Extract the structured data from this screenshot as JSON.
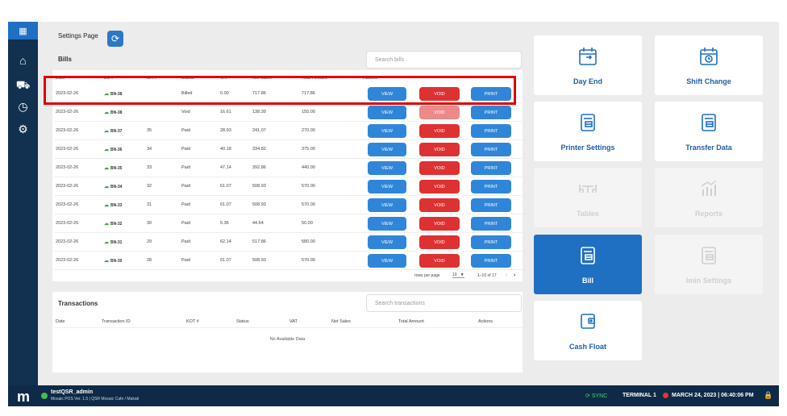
{
  "settings": {
    "page_title": "Settings Page"
  },
  "bills": {
    "title": "Bills",
    "search_placeholder": "Search bills",
    "columns": [
      "Date",
      "Bill #",
      "OR #",
      "Status",
      "VAT",
      "Net Sales",
      "Total Amount",
      "Actions"
    ],
    "sort_indicator": "▼",
    "rows": [
      {
        "date": "2023-02-26",
        "bill": "BN-38",
        "or": "",
        "status": "Billed",
        "vat": "0.00",
        "net": "717.86",
        "total": "717.86"
      },
      {
        "date": "2023-02-26",
        "bill": "BN-38",
        "or": "",
        "status": "Void",
        "vat": "16.61",
        "net": "138.39",
        "total": "155.00"
      },
      {
        "date": "2023-02-26",
        "bill": "BN-37",
        "or": "35",
        "status": "Paid",
        "vat": "28.93",
        "net": "241.07",
        "total": "270.00"
      },
      {
        "date": "2023-02-26",
        "bill": "BN-36",
        "or": "34",
        "status": "Paid",
        "vat": "40.18",
        "net": "334.82",
        "total": "375.00"
      },
      {
        "date": "2023-02-26",
        "bill": "BN-35",
        "or": "33",
        "status": "Paid",
        "vat": "47.14",
        "net": "392.86",
        "total": "440.00"
      },
      {
        "date": "2023-02-26",
        "bill": "BN-34",
        "or": "32",
        "status": "Paid",
        "vat": "61.07",
        "net": "508.93",
        "total": "570.00"
      },
      {
        "date": "2023-02-26",
        "bill": "BN-33",
        "or": "31",
        "status": "Paid",
        "vat": "61.07",
        "net": "508.93",
        "total": "570.00"
      },
      {
        "date": "2023-02-26",
        "bill": "BN-32",
        "or": "30",
        "status": "Paid",
        "vat": "5.36",
        "net": "44.64",
        "total": "50.00"
      },
      {
        "date": "2023-02-26",
        "bill": "BN-31",
        "or": "29",
        "status": "Paid",
        "vat": "62.14",
        "net": "517.86",
        "total": "580.00"
      },
      {
        "date": "2023-02-26",
        "bill": "BN-30",
        "or": "28",
        "status": "Paid",
        "vat": "61.07",
        "net": "508.93",
        "total": "570.00"
      }
    ],
    "action_labels": {
      "view": "VIEW",
      "void": "VOID",
      "print": "PRINT"
    },
    "pager": {
      "rows_per_page_label": "rows per page",
      "rows_per_page": "10",
      "range": "1–10 of 17"
    }
  },
  "transactions": {
    "title": "Transactions",
    "search_placeholder": "Search transactions",
    "columns": [
      "Date",
      "Transaction ID",
      "KOT #",
      "Status",
      "VAT",
      "Net Sales",
      "Total Amount",
      "Actions"
    ],
    "empty_text": "No Available Data"
  },
  "tiles": [
    {
      "label": "Day End",
      "icon": "calendar-exit-icon",
      "state": "normal"
    },
    {
      "label": "Shift Change",
      "icon": "calendar-clock-icon",
      "state": "normal"
    },
    {
      "label": "Printer Settings",
      "icon": "receipt-icon",
      "state": "normal"
    },
    {
      "label": "Transfer Data",
      "icon": "receipt-icon",
      "state": "normal"
    },
    {
      "label": "Tables",
      "icon": "table-icon",
      "state": "disabled"
    },
    {
      "label": "Reports",
      "icon": "bar-chart-icon",
      "state": "disabled"
    },
    {
      "label": "Bill",
      "icon": "receipt-icon",
      "state": "active"
    },
    {
      "label": "Imin Settings",
      "icon": "receipt-icon",
      "state": "disabled"
    },
    {
      "label": "Cash Float",
      "icon": "wallet-icon",
      "state": "normal"
    }
  ],
  "statusbar": {
    "logo": "m",
    "user": "testQSR_admin",
    "subtitle": "Mosaic POS Ver. 1.5 | QSR Mosaic Cafe / Makati",
    "sync": "SYNC",
    "terminal": "TERMINAL 1",
    "datetime": "MARCH 24, 2023 | 06:40:06 PM"
  },
  "colors": {
    "primary": "#1f6fc2",
    "void": "#de3131",
    "sidebar": "#12304f"
  }
}
